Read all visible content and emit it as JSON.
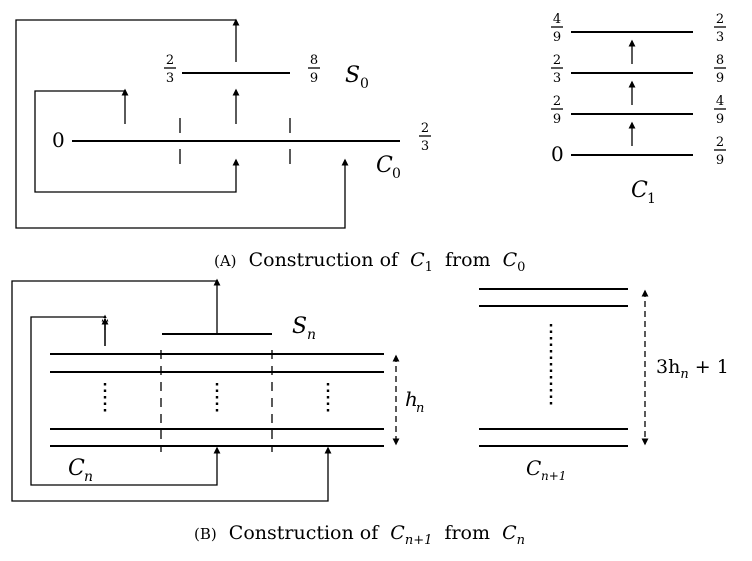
{
  "panel_a": {
    "caption_tag": "(A)",
    "caption_text": "Construction of",
    "caption_c1": "C",
    "caption_c1_sub": "1",
    "caption_from": "from",
    "caption_c0": "C",
    "caption_c0_sub": "0",
    "left": {
      "s0_name": "S",
      "s0_sub": "0",
      "c0_name": "C",
      "c0_sub": "0",
      "zero_label": "0",
      "c0_right_num": "2",
      "c0_right_den": "3",
      "s0_left_num": "2",
      "s0_left_den": "3",
      "s0_right_num": "8",
      "s0_right_den": "9"
    },
    "right": {
      "c1_name": "C",
      "c1_sub": "1",
      "levels": [
        {
          "left_num": "4",
          "left_den": "9",
          "right_num": "2",
          "right_den": "3"
        },
        {
          "left_num": "2",
          "left_den": "3",
          "right_num": "8",
          "right_den": "9"
        },
        {
          "left_num": "2",
          "left_den": "9",
          "right_num": "4",
          "right_den": "9"
        },
        {
          "left": "0",
          "right_num": "2",
          "right_den": "9"
        }
      ]
    }
  },
  "panel_b": {
    "caption_tag": "(B)",
    "caption_text": "Construction of",
    "caption_c": "C",
    "caption_c_sub": "n+1",
    "caption_from": "from",
    "caption_cn": "C",
    "caption_cn_sub": "n",
    "sn_name": "S",
    "sn_sub": "n",
    "cn_name": "C",
    "cn_sub": "n",
    "hn_name": "h",
    "hn_sub": "n",
    "cn1_name": "C",
    "cn1_sub": "n+1",
    "height_label_pre": "3h",
    "height_label_sub": "n",
    "height_label_post": " + 1"
  }
}
